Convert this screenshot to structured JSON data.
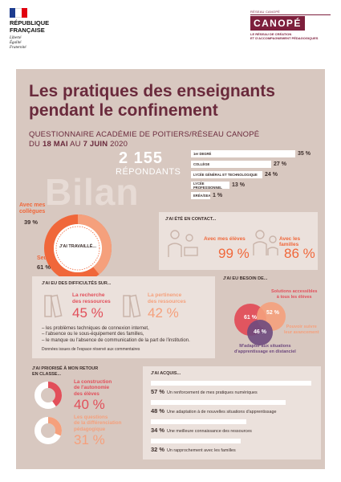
{
  "header": {
    "rf_name_line1": "RÉPUBLIQUE",
    "rf_name_line2": "FRANÇAISE",
    "rf_motto_line1": "Liberté",
    "rf_motto_line2": "Égalité",
    "rf_motto_line3": "Fraternité",
    "canope_top": "RÉSEAU CANOPÉ",
    "canope_logo": "CANOPÉ",
    "canope_sub_line1": "LE RÉSEAU DE CRÉATION",
    "canope_sub_line2": "ET D'ACCOMPAGNEMENT PÉDAGOGIQUES"
  },
  "colors": {
    "panel": "#d8c8c0",
    "title": "#6a2a3c",
    "orange": "#f0673a",
    "red": "#e24f5a",
    "peach": "#f5a07c",
    "purple": "#6e4a7e",
    "brand": "#7d1f3c"
  },
  "title": {
    "line1": "Les pratiques des enseignants",
    "line2": "pendant le confinement"
  },
  "subtitle": {
    "line1": "QUESTIONNAIRE ACADÉMIE DE POITIERS/RÉSEAU CANOPÉ",
    "line2_pre": "DU ",
    "line2_d1": "18 MAI",
    "line2_mid": " AU ",
    "line2_d2": "7 JUIN",
    "line2_post": " 2020"
  },
  "bilan": "Bilan",
  "respondents": {
    "count": "2 155",
    "label": "RÉPONDANTS"
  },
  "levels": [
    {
      "label": "1er DEGRÉ",
      "value": "35 %",
      "fraction": 0.35
    },
    {
      "label": "COLLÈGE",
      "value": "27 %",
      "fraction": 0.27
    },
    {
      "label": "LYCÉE GÉNÉRAL ET TECHNOLOGIQUE",
      "value": "24 %",
      "fraction": 0.24
    },
    {
      "label": "LYCÉE PROFESSIONNEL",
      "value": "13 %",
      "fraction": 0.13
    },
    {
      "label": "ERÉA/SEA",
      "value": "1 %",
      "fraction": 0.01
    }
  ],
  "work": {
    "center": "J'AI TRAVAILLÉ...",
    "with_colleagues_l1": "Avec mes",
    "with_colleagues_l2": "collègues",
    "with_colleagues_value": "39 %",
    "alone_label": "Seul",
    "alone_value": "61 %",
    "with_colleagues_fraction": 0.39
  },
  "contact": {
    "title": "J'AI ÉTÉ EN CONTACT...",
    "students_label": "Avec mes élèves",
    "students_value": "99 %",
    "families_label": "Avec les familles",
    "families_value": "86 %"
  },
  "difficulties": {
    "title": "J'AI EU DES DIFFICULTÉS SUR...",
    "search_l1": "La recherche",
    "search_l2": "des ressources",
    "search_value": "45 %",
    "relevance_l1": "La pertinence",
    "relevance_l2": "des ressources",
    "relevance_value": "42 %",
    "bullet1": "– les problèmes techniques de connexion internet,",
    "bullet2": "– l'absence ou le sous-équipement des familles,",
    "bullet3": "– le manque ou l'absence de communication de la part de l'institution.",
    "note": "Données issues de l'espace réservé aux commentaires"
  },
  "needs": {
    "title": "J'AI EU BESOIN DE...",
    "accessible_l1": "Solutions accessibles",
    "accessible_l2": "à tous les élèves",
    "accessible_value": "61 %",
    "pace_l1": "Pouvoir suivre",
    "pace_l2": "leur avancement",
    "pace_value": "52 %",
    "adapt_l1": "M'adapter aux situations",
    "adapt_l2": "d'apprentissage en distanciel",
    "adapt_value": "46 %"
  },
  "priority": {
    "title_l1": "J'AI PRIORISÉ À MON RETOUR",
    "title_l2": "EN CLASSE...",
    "autonomy_l1": "La construction",
    "autonomy_l2": "de l'autonomie",
    "autonomy_l3": "des élèves",
    "autonomy_value": "40 %",
    "autonomy_fraction": 0.4,
    "diff_l1": "Les questions",
    "diff_l2": "de la différenciation",
    "diff_l3": "pédagogique",
    "diff_value": "31 %",
    "diff_fraction": 0.31
  },
  "acquired": {
    "title": "J'AI ACQUIS...",
    "items": [
      {
        "value": "57 %",
        "label": "Un renforcement de mes pratiques numériques",
        "fraction": 0.57
      },
      {
        "value": "48 %",
        "label": "Une adaptation à de nouvelles situations d'apprentissage",
        "fraction": 0.48
      },
      {
        "value": "34 %",
        "label": "Une meilleure connaissance des ressources",
        "fraction": 0.34
      },
      {
        "value": "32 %",
        "label": "Un rapprochement avec les familles",
        "fraction": 0.32
      }
    ]
  }
}
